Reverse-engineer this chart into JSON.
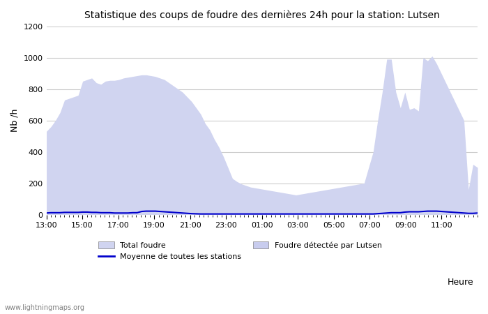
{
  "title": "Statistique des coups de foudre des dernières 24h pour la station: Lutsen",
  "ylabel": "Nb /h",
  "xlabel_right": "Heure",
  "watermark": "www.lightningmaps.org",
  "ylim": [
    0,
    1200
  ],
  "yticks": [
    0,
    200,
    400,
    600,
    800,
    1000,
    1200
  ],
  "xtick_labels": [
    "13:00",
    "15:00",
    "17:00",
    "19:00",
    "21:00",
    "23:00",
    "01:00",
    "03:00",
    "05:00",
    "07:00",
    "09:00",
    "11:00"
  ],
  "bg_color": "#ffffff",
  "plot_bg_color": "#ffffff",
  "grid_color": "#cccccc",
  "fill_total_color": "#d0d4f0",
  "fill_lutsen_color": "#c8ccee",
  "line_avg_color": "#0000cc",
  "legend": {
    "total_foudre": "Total foudre",
    "avg_stations": "Moyenne de toutes les stations",
    "foudre_lutsen": "Foudre détectée par Lutsen"
  },
  "x_total": [
    0,
    1,
    2,
    3,
    4,
    5,
    6,
    7,
    8,
    9,
    10,
    11,
    12,
    13,
    14,
    15,
    16,
    17,
    18,
    19,
    20,
    21,
    22,
    23,
    24,
    25,
    26,
    27,
    28,
    29,
    30,
    31,
    32,
    33,
    34,
    35,
    36,
    37,
    38,
    39,
    40,
    41,
    42,
    43,
    44,
    45,
    46,
    47,
    48,
    49,
    50,
    51,
    52,
    53,
    54,
    55,
    56,
    57,
    58,
    59,
    60,
    61,
    62,
    63,
    64,
    65,
    66,
    67,
    68,
    69,
    70,
    71,
    72,
    73,
    74,
    75,
    76,
    77,
    78,
    79,
    80,
    81,
    82,
    83,
    84,
    85,
    86,
    87,
    88,
    89,
    90,
    91,
    92,
    93,
    94,
    95
  ],
  "y_total": [
    530,
    560,
    600,
    650,
    730,
    740,
    750,
    760,
    850,
    860,
    870,
    840,
    830,
    850,
    855,
    855,
    860,
    870,
    875,
    880,
    885,
    890,
    890,
    885,
    880,
    870,
    860,
    840,
    820,
    800,
    780,
    750,
    720,
    680,
    640,
    580,
    540,
    480,
    430,
    370,
    300,
    230,
    210,
    195,
    185,
    175,
    170,
    165,
    160,
    155,
    150,
    145,
    140,
    135,
    130,
    125,
    130,
    135,
    140,
    145,
    150,
    155,
    160,
    165,
    170,
    175,
    180,
    185,
    190,
    195,
    200,
    300,
    400,
    600,
    780,
    990,
    990,
    780,
    680,
    780,
    670,
    680,
    660,
    1000,
    980,
    1010,
    960,
    900,
    840,
    780,
    720,
    660,
    600,
    160,
    320,
    300
  ],
  "y_lutsen": [
    0,
    0,
    0,
    0,
    0,
    0,
    0,
    0,
    0,
    0,
    0,
    0,
    0,
    0,
    0,
    0,
    0,
    0,
    0,
    0,
    0,
    0,
    0,
    0,
    0,
    0,
    0,
    0,
    0,
    0,
    0,
    0,
    0,
    0,
    0,
    0,
    0,
    0,
    0,
    0,
    0,
    0,
    0,
    0,
    0,
    0,
    0,
    0,
    0,
    0,
    0,
    0,
    0,
    0,
    0,
    0,
    0,
    0,
    0,
    0,
    0,
    0,
    0,
    0,
    0,
    0,
    0,
    0,
    0,
    0,
    0,
    0,
    0,
    0,
    0,
    0,
    0,
    0,
    0,
    0,
    0,
    0,
    0,
    0,
    0,
    0,
    0,
    0,
    0,
    0,
    0,
    0,
    0,
    0,
    0,
    0
  ],
  "y_avg": [
    10,
    12,
    12,
    12,
    14,
    14,
    14,
    14,
    16,
    16,
    14,
    14,
    12,
    12,
    12,
    10,
    10,
    10,
    10,
    12,
    12,
    20,
    22,
    22,
    22,
    20,
    18,
    16,
    14,
    12,
    10,
    8,
    6,
    5,
    4,
    4,
    4,
    4,
    4,
    4,
    4,
    4,
    4,
    4,
    4,
    4,
    4,
    4,
    4,
    4,
    4,
    4,
    4,
    4,
    4,
    4,
    4,
    4,
    4,
    4,
    4,
    4,
    4,
    4,
    4,
    4,
    4,
    4,
    4,
    4,
    4,
    4,
    4,
    6,
    8,
    10,
    12,
    12,
    12,
    16,
    18,
    18,
    18,
    20,
    22,
    22,
    22,
    20,
    18,
    16,
    14,
    12,
    10,
    8,
    8,
    10
  ]
}
